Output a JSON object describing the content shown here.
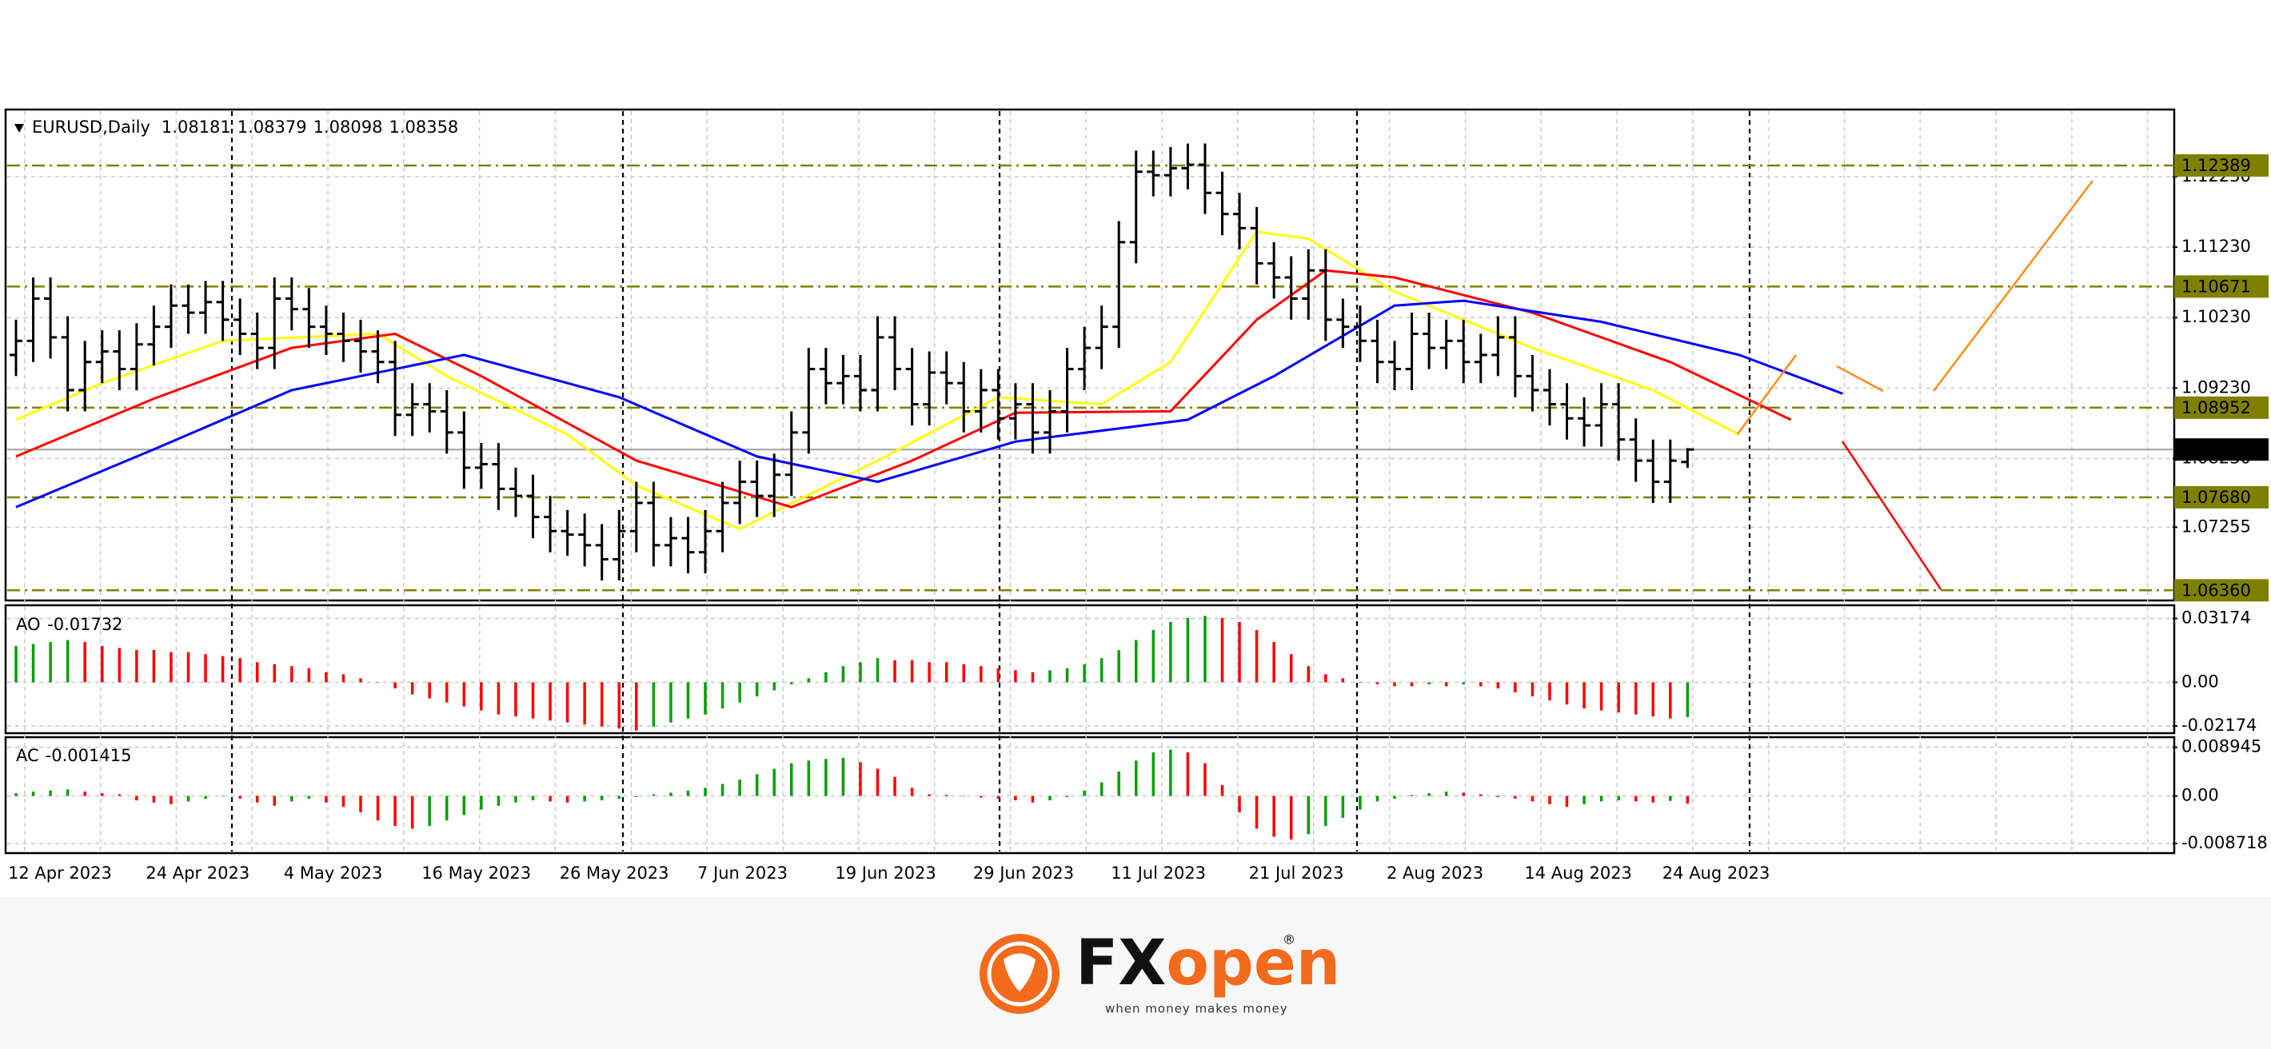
{
  "chart_data": {
    "type": "ohlc",
    "title": "EURUSD,Daily",
    "bar_color": "#000000",
    "ohlc": [
      [
        1.097,
        1.102,
        1.094,
        1.099
      ],
      [
        1.099,
        1.108,
        1.096,
        1.105
      ],
      [
        1.105,
        1.108,
        1.0965,
        1.0995
      ],
      [
        1.0995,
        1.1025,
        1.089,
        1.092
      ],
      [
        1.092,
        1.099,
        1.089,
        1.096
      ],
      [
        1.096,
        1.1005,
        1.093,
        1.0975
      ],
      [
        1.0975,
        1.1005,
        1.092,
        1.095
      ],
      [
        1.095,
        1.1015,
        1.092,
        1.0985
      ],
      [
        1.0985,
        1.104,
        1.0955,
        1.101
      ],
      [
        1.101,
        1.107,
        1.098,
        1.104
      ],
      [
        1.104,
        1.107,
        1.1,
        1.103
      ],
      [
        1.103,
        1.1075,
        1.1,
        1.1045
      ],
      [
        1.1045,
        1.1075,
        1.099,
        1.102
      ],
      [
        1.102,
        1.105,
        1.097,
        1.1
      ],
      [
        1.1,
        1.103,
        1.095,
        1.098
      ],
      [
        1.098,
        1.108,
        1.095,
        1.105
      ],
      [
        1.105,
        1.108,
        1.1005,
        1.1035
      ],
      [
        1.1035,
        1.1065,
        1.098,
        1.101
      ],
      [
        1.101,
        1.104,
        1.097,
        1.1
      ],
      [
        1.1,
        1.103,
        1.096,
        1.099
      ],
      [
        1.099,
        1.102,
        1.0945,
        1.0975
      ],
      [
        1.0975,
        1.1005,
        1.093,
        1.096
      ],
      [
        1.096,
        1.099,
        1.0855,
        1.0885
      ],
      [
        1.0885,
        1.093,
        1.0855,
        1.09
      ],
      [
        1.09,
        1.093,
        1.086,
        1.089
      ],
      [
        1.089,
        1.092,
        1.083,
        1.086
      ],
      [
        1.086,
        1.089,
        1.078,
        1.081
      ],
      [
        1.081,
        1.0845,
        1.078,
        1.0815
      ],
      [
        1.0815,
        1.0845,
        1.075,
        1.078
      ],
      [
        1.078,
        1.081,
        1.074,
        1.077
      ],
      [
        1.077,
        1.08,
        1.071,
        1.074
      ],
      [
        1.074,
        1.077,
        1.069,
        1.072
      ],
      [
        1.072,
        1.075,
        1.0685,
        1.0715
      ],
      [
        1.0715,
        1.0745,
        1.067,
        1.07
      ],
      [
        1.07,
        1.073,
        1.065,
        1.068
      ],
      [
        1.068,
        1.075,
        1.065,
        1.072
      ],
      [
        1.072,
        1.079,
        1.069,
        1.076
      ],
      [
        1.076,
        1.079,
        1.067,
        1.07
      ],
      [
        1.07,
        1.074,
        1.067,
        1.071
      ],
      [
        1.071,
        1.074,
        1.066,
        1.069
      ],
      [
        1.069,
        1.075,
        1.066,
        1.072
      ],
      [
        1.072,
        1.079,
        1.069,
        1.076
      ],
      [
        1.076,
        1.082,
        1.073,
        1.079
      ],
      [
        1.079,
        1.082,
        1.074,
        1.077
      ],
      [
        1.077,
        1.083,
        1.074,
        1.08
      ],
      [
        1.08,
        1.089,
        1.077,
        1.086
      ],
      [
        1.086,
        1.098,
        1.083,
        1.095
      ],
      [
        1.095,
        1.098,
        1.09,
        1.093
      ],
      [
        1.093,
        1.097,
        1.09,
        1.094
      ],
      [
        1.094,
        1.097,
        1.089,
        1.092
      ],
      [
        1.092,
        1.1025,
        1.089,
        1.0995
      ],
      [
        1.0995,
        1.1025,
        1.092,
        1.095
      ],
      [
        1.095,
        1.098,
        1.087,
        1.09
      ],
      [
        1.09,
        1.0975,
        1.087,
        1.0945
      ],
      [
        1.0945,
        1.0975,
        1.09,
        1.093
      ],
      [
        1.093,
        1.096,
        1.086,
        1.089
      ],
      [
        1.089,
        1.095,
        1.086,
        1.092
      ],
      [
        1.092,
        1.095,
        1.085,
        1.088
      ],
      [
        1.088,
        1.093,
        1.085,
        1.09
      ],
      [
        1.09,
        1.093,
        1.083,
        1.086
      ],
      [
        1.086,
        1.092,
        1.083,
        1.089
      ],
      [
        1.089,
        1.098,
        1.086,
        1.095
      ],
      [
        1.095,
        1.101,
        1.092,
        1.098
      ],
      [
        1.098,
        1.104,
        1.095,
        1.101
      ],
      [
        1.101,
        1.116,
        1.098,
        1.113
      ],
      [
        1.113,
        1.126,
        1.11,
        1.123
      ],
      [
        1.123,
        1.126,
        1.1195,
        1.1225
      ],
      [
        1.1225,
        1.1265,
        1.1195,
        1.1235
      ],
      [
        1.1235,
        1.127,
        1.1205,
        1.124
      ],
      [
        1.124,
        1.127,
        1.117,
        1.12
      ],
      [
        1.12,
        1.123,
        1.114,
        1.117
      ],
      [
        1.117,
        1.12,
        1.112,
        1.115
      ],
      [
        1.115,
        1.118,
        1.107,
        1.11
      ],
      [
        1.11,
        1.113,
        1.105,
        1.108
      ],
      [
        1.108,
        1.111,
        1.102,
        1.105
      ],
      [
        1.105,
        1.112,
        1.102,
        1.109
      ],
      [
        1.109,
        1.112,
        1.099,
        1.102
      ],
      [
        1.102,
        1.105,
        1.098,
        1.101
      ],
      [
        1.101,
        1.104,
        1.096,
        1.099
      ],
      [
        1.099,
        1.102,
        1.093,
        1.096
      ],
      [
        1.096,
        1.099,
        1.092,
        1.095
      ],
      [
        1.095,
        1.103,
        1.092,
        1.1
      ],
      [
        1.1,
        1.103,
        1.095,
        1.098
      ],
      [
        1.098,
        1.102,
        1.095,
        1.099
      ],
      [
        1.099,
        1.102,
        1.093,
        1.096
      ],
      [
        1.096,
        1.1,
        1.093,
        1.097
      ],
      [
        1.097,
        1.1025,
        1.094,
        1.0995
      ],
      [
        1.0995,
        1.1025,
        1.091,
        1.094
      ],
      [
        1.094,
        1.097,
        1.089,
        1.092
      ],
      [
        1.092,
        1.095,
        1.087,
        1.09
      ],
      [
        1.09,
        1.093,
        1.085,
        1.088
      ],
      [
        1.088,
        1.091,
        1.084,
        1.087
      ],
      [
        1.087,
        1.093,
        1.084,
        1.09
      ],
      [
        1.09,
        1.093,
        1.082,
        1.085
      ],
      [
        1.085,
        1.088,
        1.079,
        1.082
      ],
      [
        1.082,
        1.085,
        1.076,
        1.079
      ],
      [
        1.079,
        1.085,
        1.076,
        1.082
      ],
      [
        1.08181,
        1.08379,
        1.08098,
        1.08358
      ]
    ],
    "moving_averages": [
      {
        "color": "#ffff00",
        "x": [
          0,
          5,
          12,
          21,
          25,
          32,
          36,
          42,
          50,
          57,
          63,
          67,
          72,
          75,
          80,
          88,
          95,
          100
        ],
        "values": [
          1.0878,
          1.093,
          1.099,
          1.1,
          1.094,
          1.0857,
          1.0785,
          1.0723,
          1.082,
          1.091,
          1.09,
          1.096,
          1.1145,
          1.1135,
          1.106,
          1.098,
          1.092,
          1.0857
        ]
      },
      {
        "color": "#ff0000",
        "x": [
          0,
          8,
          16,
          22,
          27,
          36,
          45,
          52,
          58,
          67,
          72,
          76,
          80,
          88,
          96,
          103
        ],
        "values": [
          1.0826,
          1.0908,
          1.098,
          1.1,
          1.094,
          1.082,
          1.0754,
          1.082,
          1.0888,
          1.089,
          1.102,
          1.109,
          1.108,
          1.103,
          1.096,
          1.0878
        ]
      },
      {
        "color": "#0000ff",
        "x": [
          0,
          8,
          16,
          26,
          35,
          43,
          50,
          58,
          68,
          73,
          80,
          84,
          92,
          100,
          106
        ],
        "values": [
          1.0754,
          1.0836,
          1.092,
          1.097,
          1.091,
          1.0826,
          1.079,
          1.0847,
          1.0878,
          1.094,
          1.104,
          1.1047,
          1.1017,
          1.097,
          1.0915
        ]
      }
    ],
    "levels": [
      1.12389,
      1.10671,
      1.08952,
      {
        "value": 1.0768,
        "label": "1.07680"
      },
      {
        "value": 1.0636,
        "label": "1.06360"
      }
    ],
    "level_color": "#808000",
    "ylim": [
      1.0625,
      1.1316
    ],
    "yticks": [
      {
        "value": 1.1223,
        "label": "1.12230"
      },
      {
        "value": 1.1123,
        "label": "1.11230"
      },
      {
        "value": 1.1023,
        "label": "1.10230"
      },
      {
        "value": 1.0923,
        "label": "1.09230"
      },
      {
        "value": 1.0823,
        "label": "1.08230"
      },
      1.07255
    ],
    "xticks": [
      {
        "value": 0,
        "label": "12 Apr 2023"
      },
      {
        "value": 8,
        "label": "24 Apr 2023"
      },
      {
        "value": 16,
        "label": "4 May 2023"
      },
      {
        "value": 24,
        "label": "16 May 2023"
      },
      {
        "value": 32,
        "label": "26 May 2023"
      },
      {
        "value": 40,
        "label": "7 Jun 2023"
      },
      {
        "value": 48,
        "label": "19 Jun 2023"
      },
      {
        "value": 56,
        "label": "29 Jun 2023"
      },
      {
        "value": 64,
        "label": "11 Jul 2023"
      },
      {
        "value": 72,
        "label": "21 Jul 2023"
      },
      {
        "value": 80,
        "label": "2 Aug 2023"
      },
      {
        "value": 88,
        "label": "14 Aug 2023"
      },
      {
        "value": 96,
        "label": "24 Aug 2023"
      }
    ],
    "grid": true,
    "indicators": [
      {
        "type": "histogram",
        "name": "AO",
        "up_color": "#00a000",
        "down_color": "#ff0000",
        "ylim": [
          -0.0245,
          0.0375
        ],
        "yticks": [
          0.03174,
          {
            "value": 0,
            "label": "0.00"
          },
          -0.02174
        ],
        "values": [
          0.018,
          0.019,
          0.02,
          0.021,
          0.02,
          0.018,
          0.017,
          0.016,
          0.016,
          0.015,
          0.015,
          0.014,
          0.013,
          0.012,
          0.01,
          0.009,
          0.008,
          0.007,
          0.005,
          0.004,
          0.002,
          0.0,
          -0.003,
          -0.006,
          -0.008,
          -0.01,
          -0.012,
          -0.014,
          -0.016,
          -0.017,
          -0.018,
          -0.019,
          -0.02,
          -0.021,
          -0.022,
          -0.023,
          -0.024,
          -0.022,
          -0.02,
          -0.018,
          -0.016,
          -0.013,
          -0.01,
          -0.007,
          -0.004,
          -0.001,
          0.002,
          0.005,
          0.008,
          0.01,
          0.012,
          0.011,
          0.011,
          0.01,
          0.01,
          0.009,
          0.008,
          0.007,
          0.006,
          0.005,
          0.006,
          0.007,
          0.009,
          0.012,
          0.016,
          0.021,
          0.026,
          0.03,
          0.032,
          0.033,
          0.032,
          0.03,
          0.026,
          0.02,
          0.014,
          0.008,
          0.004,
          0.002,
          0.0,
          -0.001,
          -0.002,
          -0.002,
          -0.001,
          -0.002,
          -0.001,
          -0.002,
          -0.003,
          -0.005,
          -0.007,
          -0.009,
          -0.011,
          -0.013,
          -0.014,
          -0.015,
          -0.016,
          -0.017,
          -0.018,
          -0.01732
        ]
      },
      {
        "type": "histogram",
        "name": "AC",
        "up_color": "#00a000",
        "down_color": "#ff0000",
        "ylim": [
          -0.0102,
          0.0105
        ],
        "yticks": [
          0.008945,
          {
            "value": 0,
            "label": "0.00"
          },
          -0.008718
        ],
        "values": [
          0.0005,
          0.0008,
          0.001,
          0.0012,
          0.0008,
          0.0005,
          0.0003,
          -0.0008,
          -0.0012,
          -0.0015,
          -0.001,
          -0.0005,
          0.0,
          -0.0005,
          -0.0012,
          -0.0018,
          -0.001,
          -0.0005,
          -0.0012,
          -0.002,
          -0.003,
          -0.0045,
          -0.0055,
          -0.006,
          -0.0055,
          -0.0045,
          -0.0035,
          -0.0025,
          -0.0018,
          -0.0012,
          -0.0008,
          -0.001,
          -0.0012,
          -0.001,
          -0.0008,
          -0.0005,
          -0.0002,
          0.0003,
          0.0006,
          0.001,
          0.0015,
          0.0022,
          0.003,
          0.004,
          0.005,
          0.006,
          0.0065,
          0.0068,
          0.007,
          0.0062,
          0.005,
          0.0035,
          0.0015,
          0.0003,
          0.0002,
          0.0,
          -0.0003,
          -0.0005,
          -0.0008,
          -0.0012,
          -0.0008,
          -0.0002,
          0.001,
          0.0025,
          0.0045,
          0.0065,
          0.008,
          0.0085,
          0.008,
          0.006,
          0.002,
          -0.003,
          -0.006,
          -0.0075,
          -0.008,
          -0.007,
          -0.0055,
          -0.004,
          -0.0025,
          -0.001,
          -0.0005,
          0.0002,
          0.0005,
          0.0008,
          0.0006,
          0.0003,
          -0.0002,
          -0.0005,
          -0.001,
          -0.0015,
          -0.002,
          -0.0015,
          -0.001,
          -0.0008,
          -0.001,
          -0.0012,
          -0.0009,
          -0.001415
        ]
      }
    ]
  },
  "logo": {
    "brand_prefix": "FX",
    "brand_suffix": "open",
    "registered": "®",
    "tagline": "when money makes money"
  }
}
